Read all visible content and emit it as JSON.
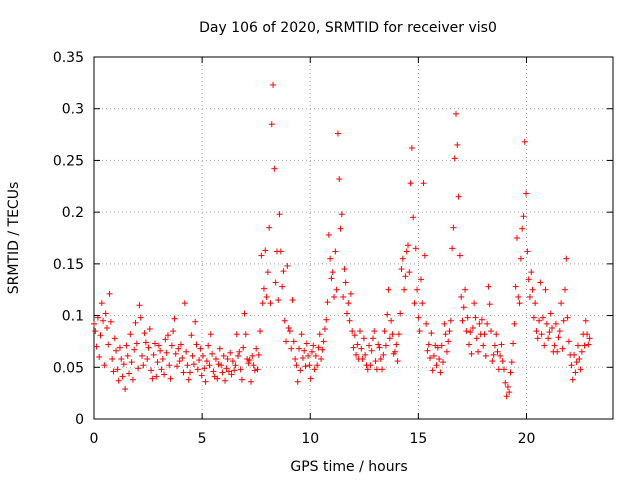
{
  "chart_data": {
    "type": "scatter",
    "title": "Day 106 of 2020, SRMTID for receiver vis0",
    "xlabel": "GPS time / hours",
    "ylabel": "SRMTID / TECUs",
    "xlim": [
      0,
      24
    ],
    "ylim": [
      0,
      0.35
    ],
    "xticks": [
      0,
      5,
      10,
      15,
      20
    ],
    "xtick_labels": [
      "0",
      "5",
      "10",
      "15",
      "20"
    ],
    "yticks": [
      0,
      0.05,
      0.1,
      0.15,
      0.2,
      0.25,
      0.3,
      0.35
    ],
    "ytick_labels": [
      "0",
      "0.05",
      "0.1",
      "0.15",
      "0.2",
      "0.25",
      "0.3",
      "0.35"
    ],
    "grid": true,
    "marker": "plus",
    "color": "#ff0000",
    "x_sample_step_hours": 0.06,
    "series": [
      {
        "name": "vis0",
        "values": [
          0.092,
          0.085,
          0.07,
          0.098,
          0.06,
          0.081,
          0.112,
          0.095,
          0.052,
          0.102,
          0.088,
          0.072,
          0.121,
          0.094,
          0.058,
          0.046,
          0.078,
          0.066,
          0.048,
          0.037,
          0.069,
          0.058,
          0.041,
          0.053,
          0.029,
          0.071,
          0.061,
          0.044,
          0.082,
          0.055,
          0.038,
          0.067,
          0.093,
          0.073,
          0.049,
          0.11,
          0.098,
          0.061,
          0.052,
          0.083,
          0.074,
          0.058,
          0.069,
          0.087,
          0.047,
          0.039,
          0.062,
          0.073,
          0.041,
          0.055,
          0.071,
          0.066,
          0.048,
          0.058,
          0.043,
          0.077,
          0.064,
          0.081,
          0.052,
          0.039,
          0.071,
          0.085,
          0.097,
          0.063,
          0.051,
          0.068,
          0.056,
          0.072,
          0.059,
          0.045,
          0.112,
          0.065,
          0.052,
          0.038,
          0.045,
          0.081,
          0.061,
          0.053,
          0.094,
          0.072,
          0.048,
          0.057,
          0.068,
          0.042,
          0.061,
          0.049,
          0.036,
          0.056,
          0.071,
          0.052,
          0.082,
          0.063,
          0.046,
          0.041,
          0.058,
          0.039,
          0.053,
          0.068,
          0.052,
          0.045,
          0.061,
          0.037,
          0.049,
          0.058,
          0.046,
          0.064,
          0.043,
          0.056,
          0.047,
          0.052,
          0.082,
          0.061,
          0.065,
          0.048,
          0.038,
          0.069,
          0.102,
          0.082,
          0.058,
          0.054,
          0.057,
          0.036,
          0.061,
          0.052,
          0.047,
          0.068,
          0.048,
          0.062,
          0.085,
          0.158,
          0.112,
          0.126,
          0.163,
          0.118,
          0.142,
          0.185,
          0.112,
          0.285,
          0.323,
          0.242,
          0.132,
          0.162,
          0.115,
          0.198,
          0.162,
          0.128,
          0.143,
          0.095,
          0.075,
          0.148,
          0.088,
          0.085,
          0.068,
          0.115,
          0.075,
          0.058,
          0.052,
          0.036,
          0.068,
          0.047,
          0.082,
          0.059,
          0.066,
          0.051,
          0.073,
          0.061,
          0.052,
          0.039,
          0.065,
          0.071,
          0.048,
          0.061,
          0.052,
          0.069,
          0.082,
          0.058,
          0.067,
          0.075,
          0.087,
          0.096,
          0.113,
          0.178,
          0.155,
          0.136,
          0.142,
          0.118,
          0.162,
          0.125,
          0.276,
          0.232,
          0.184,
          0.198,
          0.118,
          0.145,
          0.132,
          0.102,
          0.112,
          0.095,
          0.121,
          0.085,
          0.069,
          0.081,
          0.062,
          0.072,
          0.058,
          0.085,
          0.068,
          0.058,
          0.078,
          0.062,
          0.052,
          0.048,
          0.071,
          0.052,
          0.066,
          0.078,
          0.085,
          0.056,
          0.048,
          0.072,
          0.069,
          0.058,
          0.048,
          0.062,
          0.085,
          0.071,
          0.101,
          0.125,
          0.078,
          0.095,
          0.082,
          0.063,
          0.065,
          0.072,
          0.056,
          0.082,
          0.102,
          0.145,
          0.155,
          0.125,
          0.138,
          0.162,
          0.168,
          0.142,
          0.228,
          0.262,
          0.195,
          0.112,
          0.165,
          0.125,
          0.098,
          0.085,
          0.135,
          0.112,
          0.228,
          0.158,
          0.092,
          0.066,
          0.072,
          0.059,
          0.083,
          0.047,
          0.061,
          0.071,
          0.052,
          0.069,
          0.058,
          0.045,
          0.071,
          0.055,
          0.092,
          0.082,
          0.065,
          0.075,
          0.085,
          0.095,
          0.165,
          0.185,
          0.252,
          0.295,
          0.265,
          0.215,
          0.158,
          0.118,
          0.095,
          0.108,
          0.125,
          0.085,
          0.098,
          0.072,
          0.084,
          0.063,
          0.088,
          0.112,
          0.098,
          0.078,
          0.065,
          0.092,
          0.082,
          0.096,
          0.071,
          0.082,
          0.061,
          0.092,
          0.128,
          0.111,
          0.085,
          0.056,
          0.062,
          0.071,
          0.082,
          0.065,
          0.048,
          0.061,
          0.072,
          0.056,
          0.048,
          0.035,
          0.022,
          0.031,
          0.026,
          0.045,
          0.055,
          0.073,
          0.092,
          0.128,
          0.175,
          0.118,
          0.112,
          0.155,
          0.184,
          0.196,
          0.268,
          0.218,
          0.162,
          0.135,
          0.118,
          0.142,
          0.125,
          0.098,
          0.112,
          0.085,
          0.078,
          0.095,
          0.132,
          0.082,
          0.098,
          0.071,
          0.125,
          0.092,
          0.078,
          0.084,
          0.102,
          0.088,
          0.065,
          0.071,
          0.092,
          0.065,
          0.079,
          0.085,
          0.112,
          0.068,
          0.095,
          0.125,
          0.155,
          0.098,
          0.075,
          0.062,
          0.052,
          0.038,
          0.062,
          0.045,
          0.055,
          0.071,
          0.058,
          0.048,
          0.065,
          0.082,
          0.071,
          0.095,
          0.082,
          0.072,
          0.078
        ]
      }
    ]
  }
}
